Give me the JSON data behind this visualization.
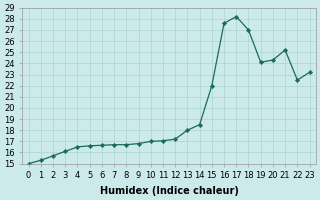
{
  "x": [
    0,
    1,
    2,
    3,
    4,
    5,
    6,
    7,
    8,
    9,
    10,
    11,
    12,
    13,
    14,
    15,
    16,
    17,
    18,
    19,
    20,
    21,
    22,
    23
  ],
  "y": [
    15.0,
    15.3,
    15.7,
    16.1,
    16.5,
    16.6,
    16.65,
    16.7,
    16.7,
    16.8,
    17.0,
    17.05,
    17.2,
    18.0,
    18.5,
    22.0,
    27.6,
    28.2,
    27.0,
    24.1,
    24.3,
    25.2,
    22.5,
    23.2
  ],
  "xlabel": "Humidex (Indice chaleur)",
  "ylabel": "",
  "ylim": [
    15,
    29
  ],
  "xlim": [
    -0.5,
    23.5
  ],
  "bg_color": "#cceaea",
  "grid_color": "#aad4d4",
  "line_color": "#1a6b5a",
  "marker_color": "#1a6b5a",
  "yticks": [
    15,
    16,
    17,
    18,
    19,
    20,
    21,
    22,
    23,
    24,
    25,
    26,
    27,
    28,
    29
  ],
  "xticks": [
    0,
    1,
    2,
    3,
    4,
    5,
    6,
    7,
    8,
    9,
    10,
    11,
    12,
    13,
    14,
    15,
    16,
    17,
    18,
    19,
    20,
    21,
    22,
    23
  ],
  "axis_fontsize": 7,
  "tick_fontsize": 6
}
